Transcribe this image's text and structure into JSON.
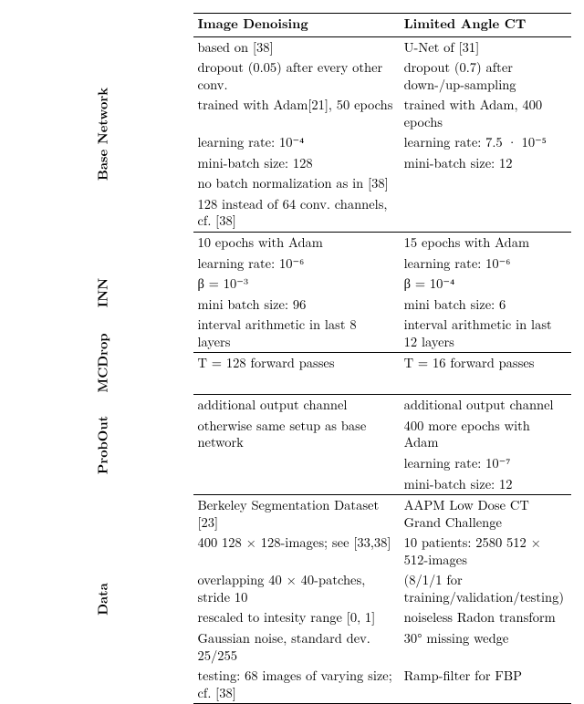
{
  "colors": {
    "background": "#ffffff",
    "text": "#000000",
    "rule": "#000000"
  },
  "typography": {
    "font_family": "Latin Modern Roman / Times serif",
    "base_fontsize_pt": 11,
    "header_bold": true,
    "rowlabel_bold": true
  },
  "table": {
    "headers": {
      "col1": "Image Denoising",
      "col2": "Limited Angle CT"
    },
    "sections": [
      {
        "label": "Base Network",
        "col1": [
          "based on [38]",
          "dropout (0.05) after every other conv.",
          "trained with Adam[21], 50 epochs",
          "learning rate: 10⁻⁴",
          "mini-batch size: 128",
          "no batch normalization as in [38]",
          "128 instead of 64 conv. channels, cf. [38]"
        ],
        "col2": [
          "U-Net of [31]",
          "dropout (0.7) after down-/up-sampling",
          "trained with Adam, 400 epochs",
          "learning rate: 7.5 · 10⁻⁵",
          "mini-batch size: 12"
        ]
      },
      {
        "label": "INN",
        "col1": [
          "10 epochs with Adam",
          "learning rate: 10⁻⁶",
          "β = 10⁻³",
          "mini batch size: 96",
          "interval arithmetic in last 8 layers"
        ],
        "col2": [
          "15 epochs with Adam",
          "learning rate: 10⁻⁶",
          "β = 10⁻⁴",
          "mini batch size: 6",
          "interval arithmetic in last 12 layers"
        ]
      },
      {
        "label": "MCDrop",
        "col1": [
          "T = 128 forward passes"
        ],
        "col2": [
          "T = 16 forward passes"
        ]
      },
      {
        "label": "ProbOut",
        "col1": [
          "additional output channel",
          "otherwise same setup as base network"
        ],
        "col2": [
          "additional output channel",
          "400 more epochs with Adam",
          "learning rate: 10⁻⁷",
          "mini-batch size: 12"
        ]
      },
      {
        "label": "Data",
        "col1": [
          "Berkeley Segmentation Dataset [23]",
          "400 128 × 128-images; see [33,38]",
          "overlapping 40 × 40-patches, stride 10",
          "rescaled to intesity range [0, 1]",
          "Gaussian noise, standard dev. 25/255",
          "testing: 68 images of varying size; cf. [38]"
        ],
        "col2": [
          "AAPM Low Dose CT Grand Challenge",
          "10 patients: 2580 512 × 512-images",
          "(8/1/1 for training/validation/testing)",
          "noiseless Radon transform",
          "30° missing wedge",
          "Ramp-filter for FBP"
        ]
      }
    ]
  }
}
